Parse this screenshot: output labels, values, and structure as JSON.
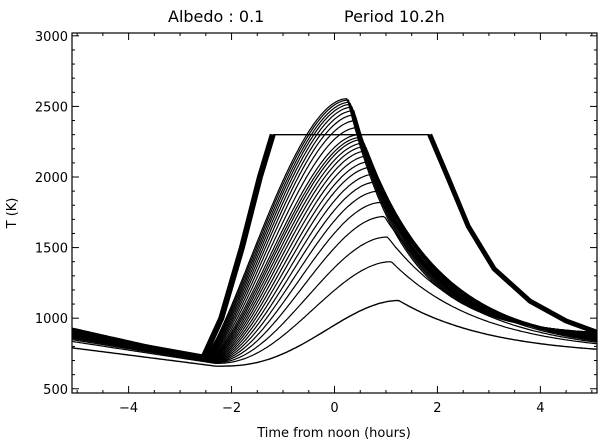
{
  "chart_data": {
    "type": "line",
    "title_left": "Albedo : 0.1",
    "title_right": "Period 10.2h",
    "xlabel": "Time from noon (hours)",
    "ylabel": "T (K)",
    "xlim": [
      -5.1,
      5.1
    ],
    "ylim": [
      470,
      3020
    ],
    "xticks": [
      -4,
      -2,
      0,
      2,
      4
    ],
    "yticks": [
      500,
      1000,
      1500,
      2000,
      2500,
      3000
    ],
    "grid": false,
    "legend": "none",
    "line_color": "#000000",
    "series_count": 30,
    "curve_model": {
      "left_base": [
        790,
        865,
        930
      ],
      "left_min": [
        660,
        700,
        720
      ],
      "peaks": [
        1125,
        1400,
        1575,
        1720,
        1820,
        1900,
        1965,
        2020,
        2070,
        2110,
        2150,
        2185,
        2215,
        2240,
        2265,
        2280,
        2300,
        2350,
        2400,
        2440,
        2470,
        2495,
        2515,
        2530,
        2545,
        2555
      ],
      "right_end": [
        780,
        900
      ],
      "plateau_temperature": 2300,
      "plateau_x": [
        -1.2,
        1.85
      ]
    },
    "series": [
      {
        "x": [
          -5.1,
          -4,
          -3,
          -2.6,
          -2,
          -1,
          0,
          1.2,
          2,
          3,
          4,
          5.1
        ],
        "y": [
          790,
          752,
          713,
          700,
          725,
          860,
          1010,
          1125,
          1090,
          970,
          860,
          780
        ]
      },
      {
        "x": [
          -5.1,
          -4,
          -3,
          -2.6,
          -2,
          -1,
          0,
          1.0,
          2,
          3,
          4,
          5.1
        ],
        "y": [
          820,
          774,
          728,
          712,
          790,
          1110,
          1330,
          1400,
          1320,
          1130,
          960,
          830
        ]
      },
      {
        "x": [
          -5.1,
          -4,
          -3,
          -2.6,
          -2,
          -1,
          0,
          0.8,
          2,
          3,
          4,
          5.1
        ],
        "y": [
          845,
          790,
          740,
          720,
          840,
          1300,
          1530,
          1575,
          1440,
          1200,
          1010,
          850
        ]
      },
      {
        "x": [
          -5.1,
          -4,
          -3,
          -2.6,
          -2,
          -1,
          0,
          0.6,
          2,
          3,
          4,
          5.1
        ],
        "y": [
          930,
          845,
          768,
          725,
          1080,
          2000,
          2540,
          2555,
          2050,
          1380,
          1080,
          900
        ]
      }
    ]
  }
}
